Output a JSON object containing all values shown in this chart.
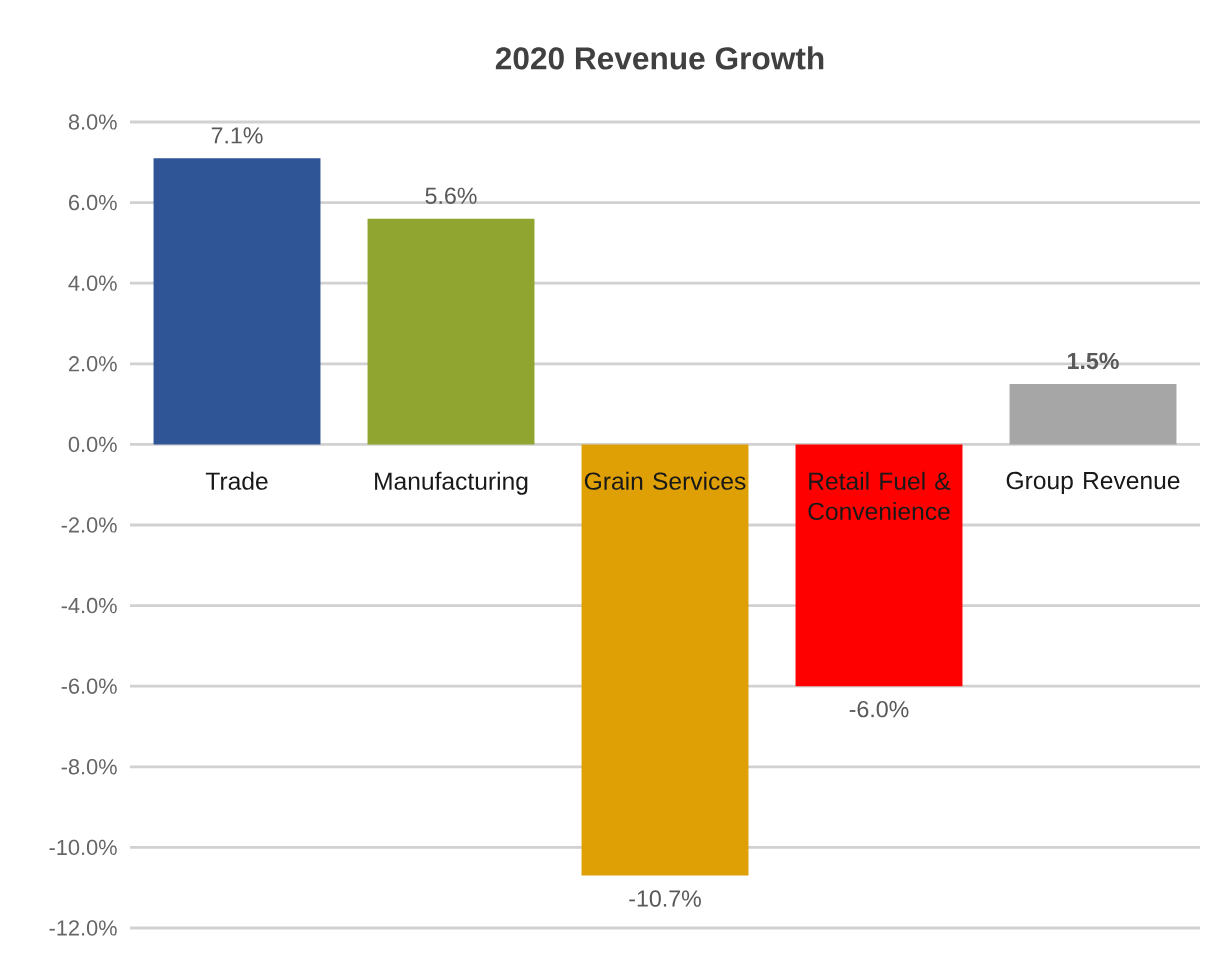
{
  "chart_data": {
    "type": "bar",
    "title": "2020 Revenue Growth",
    "categories": [
      "Trade",
      "Manufacturing",
      "Grain Services",
      "Retail Fuel & Convenience",
      "Group Revenue"
    ],
    "values": [
      7.1,
      5.6,
      -10.7,
      -6.0,
      1.5
    ],
    "colors": [
      "#2f5597",
      "#8fa52f",
      "#dfa005",
      "#ff0000",
      "#a6a6a6"
    ],
    "value_labels": [
      "7.1%",
      "5.6%",
      "-10.7%",
      "-6.0%",
      "**1.5%**"
    ],
    "ylim": [
      -12,
      8
    ],
    "yticks": [
      {
        "value": -12,
        "label": "-12.0%"
      },
      {
        "value": -10,
        "label": "-10.0%"
      },
      {
        "value": -8,
        "label": "-8.0%"
      },
      {
        "value": -6,
        "label": "-6.0%"
      },
      {
        "value": -4,
        "label": "-4.0%"
      },
      {
        "value": -2,
        "label": "-2.0%"
      },
      {
        "value": 0,
        "label": "0.0%"
      },
      {
        "value": 2,
        "label": "2.0%"
      },
      {
        "value": 4,
        "label": "4.0%"
      },
      {
        "value": 6,
        "label": "6.0%"
      },
      {
        "value": 8,
        "label": "8.0%"
      }
    ],
    "grid": "y"
  }
}
